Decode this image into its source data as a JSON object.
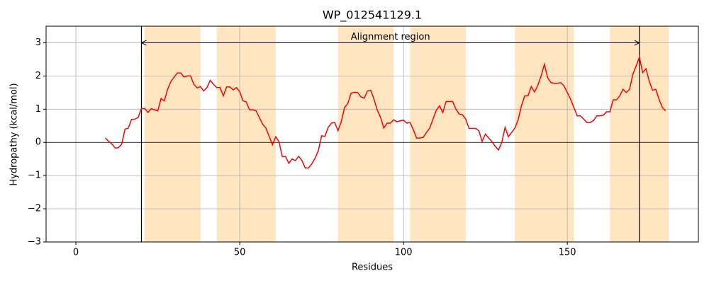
{
  "chart_data": {
    "type": "line",
    "title": "WP_012541129.1",
    "xlabel": "Residues",
    "ylabel": "Hydropathy (kcal/mol)",
    "xlim": [
      -9.1,
      190
    ],
    "ylim": [
      -3,
      3.5
    ],
    "xticks": [
      0,
      50,
      100,
      150
    ],
    "yticks": [
      {
        "value": -3,
        "label": "−3"
      },
      {
        "value": -2,
        "label": "−2"
      },
      {
        "value": -1,
        "label": "−1"
      },
      0,
      1,
      2,
      3
    ],
    "grid": true,
    "color": "#ff0000",
    "x": [
      9,
      10,
      11,
      12,
      13,
      14,
      15,
      16,
      17,
      18,
      19,
      20,
      21,
      22,
      23,
      24,
      25,
      26,
      27,
      28,
      29,
      30,
      31,
      32,
      33,
      34,
      35,
      36,
      37,
      38,
      39,
      40,
      41,
      42,
      43,
      44,
      45,
      46,
      47,
      48,
      49,
      50,
      51,
      52,
      53,
      54,
      55,
      56,
      57,
      58,
      59,
      60,
      61,
      62,
      63,
      64,
      65,
      66,
      67,
      68,
      69,
      70,
      71,
      72,
      73,
      74,
      75,
      76,
      77,
      78,
      79,
      80,
      81,
      82,
      83,
      84,
      85,
      86,
      87,
      88,
      89,
      90,
      91,
      92,
      93,
      94,
      95,
      96,
      97,
      98,
      99,
      100,
      101,
      102,
      103,
      104,
      105,
      106,
      107,
      108,
      109,
      110,
      111,
      112,
      113,
      114,
      115,
      116,
      117,
      118,
      119,
      120,
      121,
      122,
      123,
      124,
      125,
      126,
      127,
      128,
      129,
      130,
      131,
      132,
      133,
      134,
      135,
      136,
      137,
      138,
      139,
      140,
      141,
      142,
      143,
      144,
      145,
      146,
      147,
      148,
      149,
      150,
      151,
      152,
      153,
      154,
      155,
      156,
      157,
      158,
      159,
      160,
      161,
      162,
      163,
      164,
      165,
      166,
      167,
      168,
      169,
      170,
      171,
      172,
      173,
      174,
      175,
      176,
      177,
      178,
      179,
      180
    ],
    "values": [
      0.13,
      0.03,
      -0.05,
      -0.17,
      -0.16,
      -0.05,
      0.4,
      0.43,
      0.69,
      0.7,
      0.75,
      1.02,
      1.02,
      0.9,
      1.02,
      0.98,
      0.95,
      1.32,
      1.25,
      1.6,
      1.83,
      1.97,
      2.09,
      2.09,
      1.97,
      2.0,
      2.0,
      1.75,
      1.64,
      1.68,
      1.55,
      1.65,
      1.87,
      1.75,
      1.65,
      1.65,
      1.4,
      1.67,
      1.67,
      1.58,
      1.65,
      1.53,
      1.25,
      1.22,
      0.98,
      0.98,
      0.95,
      0.75,
      0.55,
      0.43,
      0.18,
      -0.07,
      0.17,
      0.02,
      -0.43,
      -0.43,
      -0.63,
      -0.5,
      -0.55,
      -0.42,
      -0.55,
      -0.77,
      -0.77,
      -0.65,
      -0.48,
      -0.25,
      0.2,
      0.18,
      0.45,
      0.58,
      0.6,
      0.35,
      0.62,
      1.05,
      1.17,
      1.48,
      1.51,
      1.5,
      1.37,
      1.33,
      1.55,
      1.57,
      1.3,
      0.97,
      0.75,
      0.43,
      0.58,
      0.58,
      0.68,
      0.62,
      0.65,
      0.67,
      0.58,
      0.6,
      0.38,
      0.13,
      0.13,
      0.15,
      0.3,
      0.43,
      0.7,
      0.97,
      1.1,
      0.9,
      1.23,
      1.23,
      1.23,
      1.0,
      0.85,
      0.83,
      0.7,
      0.42,
      0.42,
      0.42,
      0.35,
      0.03,
      0.25,
      0.13,
      0.02,
      -0.12,
      -0.23,
      0.0,
      0.45,
      0.17,
      0.3,
      0.43,
      0.68,
      1.1,
      1.4,
      1.4,
      1.68,
      1.52,
      1.72,
      2.0,
      2.35,
      1.95,
      1.8,
      1.78,
      1.78,
      1.8,
      1.7,
      1.5,
      1.3,
      1.05,
      0.8,
      0.8,
      0.7,
      0.6,
      0.6,
      0.66,
      0.8,
      0.8,
      0.82,
      0.92,
      0.92,
      1.28,
      1.28,
      1.4,
      1.6,
      1.5,
      1.6,
      2.05,
      2.3,
      2.57,
      2.1,
      2.22,
      1.85,
      1.57,
      1.6,
      1.3,
      1.05,
      0.95
    ],
    "regions": [
      [
        21,
        38
      ],
      [
        43,
        61
      ],
      [
        80,
        97
      ],
      [
        102,
        119
      ],
      [
        134,
        152
      ],
      [
        163,
        181
      ]
    ],
    "region_color": "#ffe5c0",
    "vlines": [
      20,
      172
    ],
    "hline": 0,
    "arrow": {
      "x": [
        20,
        172
      ],
      "y": 3,
      "text": "Alignment region"
    }
  }
}
